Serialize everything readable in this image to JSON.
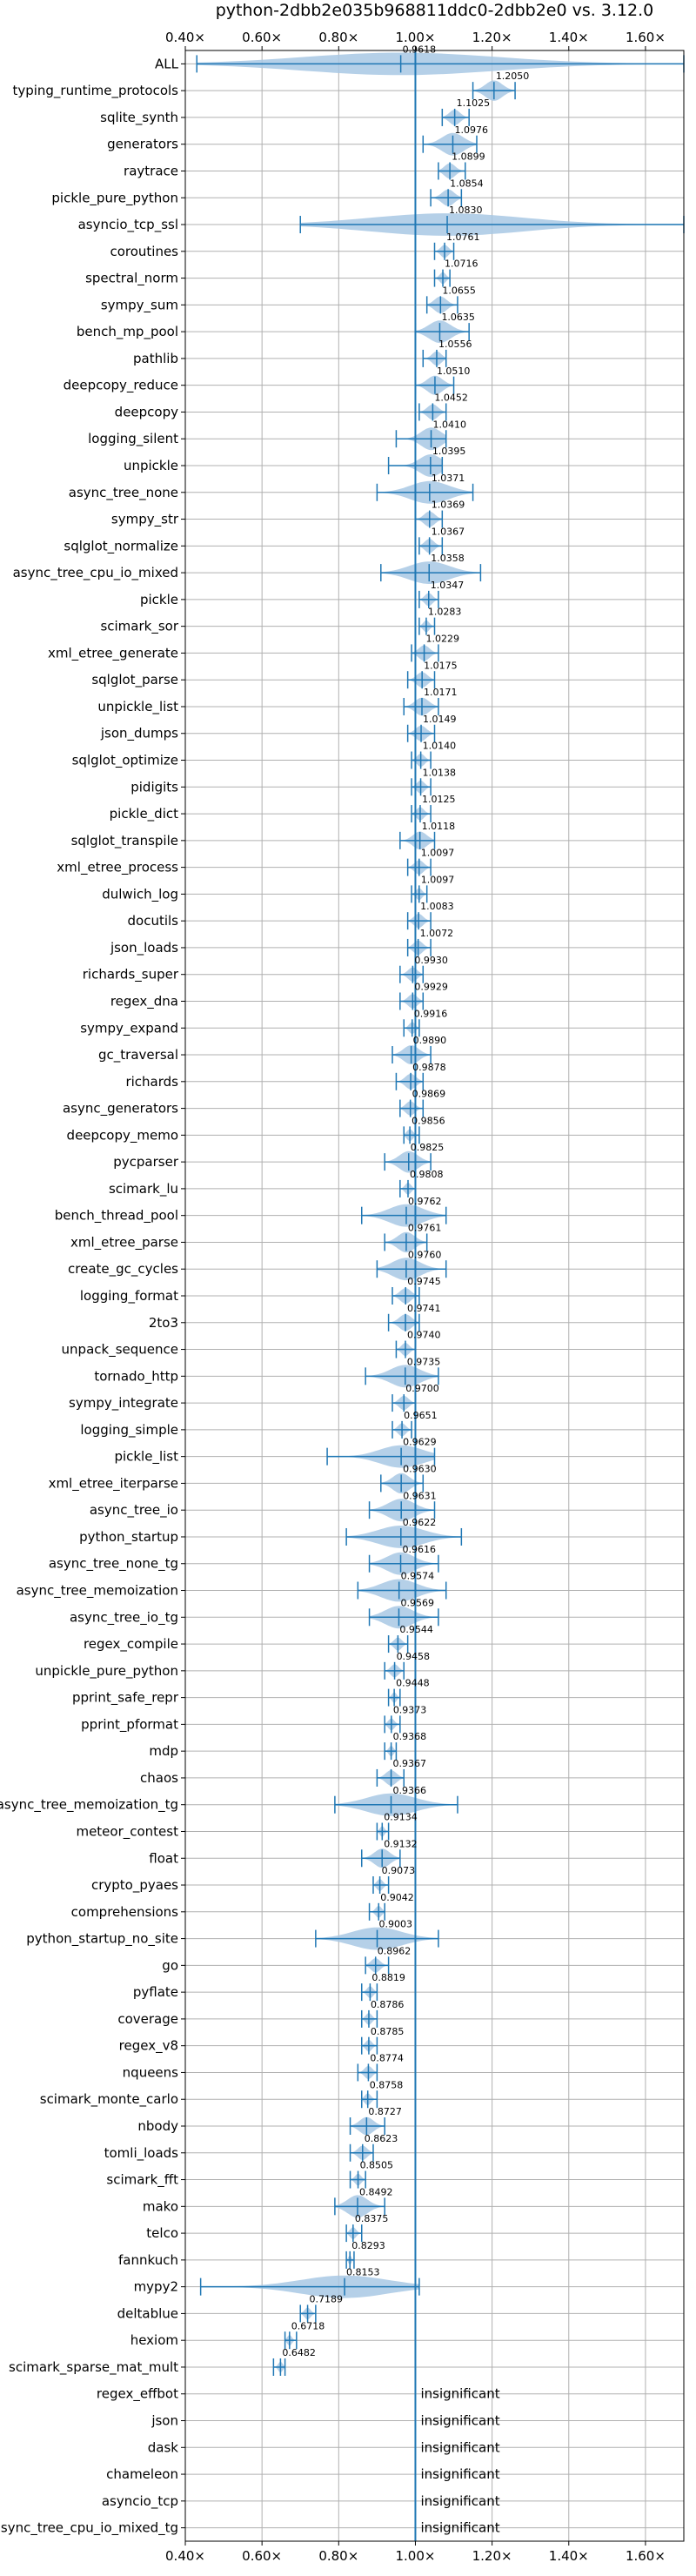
{
  "chart_data": {
    "type": "violin",
    "title": "python-2dbb2e035b968811ddc0-2dbb2e0 vs. 3.12.0",
    "xlim": [
      0.4,
      1.7
    ],
    "xticks": [
      0.4,
      0.6,
      0.8,
      1.0,
      1.2,
      1.4,
      1.6
    ],
    "xtick_labels": [
      "0.40×",
      "0.60×",
      "0.80×",
      "1.00×",
      "1.20×",
      "1.40×",
      "1.60×"
    ],
    "reference_line": 1.0,
    "grid": true,
    "colors": {
      "violin": "#a8c8e4",
      "line": "#1f77b4",
      "grid": "#b0b0b0"
    },
    "benchmarks": [
      {
        "name": "ALL",
        "value": 0.9618,
        "value_label": "0.9618",
        "min": 0.43,
        "max": 1.7
      },
      {
        "name": "typing_runtime_protocols",
        "value": 1.205,
        "value_label": "1.2050",
        "min": 1.15,
        "max": 1.26
      },
      {
        "name": "sqlite_synth",
        "value": 1.1025,
        "value_label": "1.1025",
        "min": 1.07,
        "max": 1.14
      },
      {
        "name": "generators",
        "value": 1.0976,
        "value_label": "1.0976",
        "min": 1.02,
        "max": 1.16
      },
      {
        "name": "raytrace",
        "value": 1.0899,
        "value_label": "1.0899",
        "min": 1.06,
        "max": 1.13
      },
      {
        "name": "pickle_pure_python",
        "value": 1.0854,
        "value_label": "1.0854",
        "min": 1.04,
        "max": 1.12
      },
      {
        "name": "asyncio_tcp_ssl",
        "value": 1.083,
        "value_label": "1.0830",
        "min": 0.7,
        "max": 1.7
      },
      {
        "name": "coroutines",
        "value": 1.0761,
        "value_label": "1.0761",
        "min": 1.05,
        "max": 1.1
      },
      {
        "name": "spectral_norm",
        "value": 1.0716,
        "value_label": "1.0716",
        "min": 1.05,
        "max": 1.09
      },
      {
        "name": "sympy_sum",
        "value": 1.0655,
        "value_label": "1.0655",
        "min": 1.03,
        "max": 1.11
      },
      {
        "name": "bench_mp_pool",
        "value": 1.0635,
        "value_label": "1.0635",
        "min": 1.0,
        "max": 1.14
      },
      {
        "name": "pathlib",
        "value": 1.0556,
        "value_label": "1.0556",
        "min": 1.02,
        "max": 1.08
      },
      {
        "name": "deepcopy_reduce",
        "value": 1.051,
        "value_label": "1.0510",
        "min": 1.0,
        "max": 1.1
      },
      {
        "name": "deepcopy",
        "value": 1.0452,
        "value_label": "1.0452",
        "min": 1.01,
        "max": 1.08
      },
      {
        "name": "logging_silent",
        "value": 1.041,
        "value_label": "1.0410",
        "min": 0.95,
        "max": 1.08
      },
      {
        "name": "unpickle",
        "value": 1.0395,
        "value_label": "1.0395",
        "min": 0.93,
        "max": 1.07
      },
      {
        "name": "async_tree_none",
        "value": 1.0371,
        "value_label": "1.0371",
        "min": 0.9,
        "max": 1.15
      },
      {
        "name": "sympy_str",
        "value": 1.0369,
        "value_label": "1.0369",
        "min": 1.0,
        "max": 1.07
      },
      {
        "name": "sqlglot_normalize",
        "value": 1.0367,
        "value_label": "1.0367",
        "min": 1.01,
        "max": 1.07
      },
      {
        "name": "async_tree_cpu_io_mixed",
        "value": 1.0358,
        "value_label": "1.0358",
        "min": 0.91,
        "max": 1.17
      },
      {
        "name": "pickle",
        "value": 1.0347,
        "value_label": "1.0347",
        "min": 1.01,
        "max": 1.06
      },
      {
        "name": "scimark_sor",
        "value": 1.0283,
        "value_label": "1.0283",
        "min": 1.01,
        "max": 1.05
      },
      {
        "name": "xml_etree_generate",
        "value": 1.0229,
        "value_label": "1.0229",
        "min": 0.99,
        "max": 1.06
      },
      {
        "name": "sqlglot_parse",
        "value": 1.0175,
        "value_label": "1.0175",
        "min": 0.98,
        "max": 1.05
      },
      {
        "name": "unpickle_list",
        "value": 1.0171,
        "value_label": "1.0171",
        "min": 0.97,
        "max": 1.06
      },
      {
        "name": "json_dumps",
        "value": 1.0149,
        "value_label": "1.0149",
        "min": 0.98,
        "max": 1.05
      },
      {
        "name": "sqlglot_optimize",
        "value": 1.014,
        "value_label": "1.0140",
        "min": 0.99,
        "max": 1.04
      },
      {
        "name": "pidigits",
        "value": 1.0138,
        "value_label": "1.0138",
        "min": 0.99,
        "max": 1.04
      },
      {
        "name": "pickle_dict",
        "value": 1.0125,
        "value_label": "1.0125",
        "min": 0.99,
        "max": 1.04
      },
      {
        "name": "sqlglot_transpile",
        "value": 1.0118,
        "value_label": "1.0118",
        "min": 0.96,
        "max": 1.05
      },
      {
        "name": "xml_etree_process",
        "value": 1.0097,
        "value_label": "1.0097",
        "min": 0.98,
        "max": 1.04
      },
      {
        "name": "dulwich_log",
        "value": 1.0097,
        "value_label": "1.0097",
        "min": 0.99,
        "max": 1.03
      },
      {
        "name": "docutils",
        "value": 1.0083,
        "value_label": "1.0083",
        "min": 0.98,
        "max": 1.04
      },
      {
        "name": "json_loads",
        "value": 1.0072,
        "value_label": "1.0072",
        "min": 0.98,
        "max": 1.04
      },
      {
        "name": "richards_super",
        "value": 0.993,
        "value_label": "0.9930",
        "min": 0.96,
        "max": 1.02
      },
      {
        "name": "regex_dna",
        "value": 0.9929,
        "value_label": "0.9929",
        "min": 0.96,
        "max": 1.02
      },
      {
        "name": "sympy_expand",
        "value": 0.9916,
        "value_label": "0.9916",
        "min": 0.97,
        "max": 1.01
      },
      {
        "name": "gc_traversal",
        "value": 0.989,
        "value_label": "0.9890",
        "min": 0.94,
        "max": 1.04
      },
      {
        "name": "richards",
        "value": 0.9878,
        "value_label": "0.9878",
        "min": 0.95,
        "max": 1.02
      },
      {
        "name": "async_generators",
        "value": 0.9869,
        "value_label": "0.9869",
        "min": 0.96,
        "max": 1.02
      },
      {
        "name": "deepcopy_memo",
        "value": 0.9856,
        "value_label": "0.9856",
        "min": 0.97,
        "max": 1.01
      },
      {
        "name": "pycparser",
        "value": 0.9825,
        "value_label": "0.9825",
        "min": 0.92,
        "max": 1.04
      },
      {
        "name": "scimark_lu",
        "value": 0.9808,
        "value_label": "0.9808",
        "min": 0.96,
        "max": 1.0
      },
      {
        "name": "bench_thread_pool",
        "value": 0.9762,
        "value_label": "0.9762",
        "min": 0.86,
        "max": 1.08
      },
      {
        "name": "xml_etree_parse",
        "value": 0.9761,
        "value_label": "0.9761",
        "min": 0.92,
        "max": 1.03
      },
      {
        "name": "create_gc_cycles",
        "value": 0.976,
        "value_label": "0.9760",
        "min": 0.9,
        "max": 1.08
      },
      {
        "name": "logging_format",
        "value": 0.9745,
        "value_label": "0.9745",
        "min": 0.94,
        "max": 1.01
      },
      {
        "name": "2to3",
        "value": 0.9741,
        "value_label": "0.9741",
        "min": 0.93,
        "max": 1.01
      },
      {
        "name": "unpack_sequence",
        "value": 0.974,
        "value_label": "0.9740",
        "min": 0.95,
        "max": 1.0
      },
      {
        "name": "tornado_http",
        "value": 0.9735,
        "value_label": "0.9735",
        "min": 0.87,
        "max": 1.06
      },
      {
        "name": "sympy_integrate",
        "value": 0.97,
        "value_label": "0.9700",
        "min": 0.94,
        "max": 1.0
      },
      {
        "name": "logging_simple",
        "value": 0.9651,
        "value_label": "0.9651",
        "min": 0.94,
        "max": 0.99
      },
      {
        "name": "pickle_list",
        "value": 0.9629,
        "value_label": "0.9629",
        "min": 0.77,
        "max": 1.05
      },
      {
        "name": "xml_etree_iterparse",
        "value": 0.963,
        "value_label": "0.9630",
        "min": 0.91,
        "max": 1.02
      },
      {
        "name": "async_tree_io",
        "value": 0.9631,
        "value_label": "0.9631",
        "min": 0.88,
        "max": 1.05
      },
      {
        "name": "python_startup",
        "value": 0.9622,
        "value_label": "0.9622",
        "min": 0.82,
        "max": 1.12
      },
      {
        "name": "async_tree_none_tg",
        "value": 0.9616,
        "value_label": "0.9616",
        "min": 0.88,
        "max": 1.06
      },
      {
        "name": "async_tree_memoization",
        "value": 0.9574,
        "value_label": "0.9574",
        "min": 0.85,
        "max": 1.08
      },
      {
        "name": "async_tree_io_tg",
        "value": 0.9569,
        "value_label": "0.9569",
        "min": 0.88,
        "max": 1.06
      },
      {
        "name": "regex_compile",
        "value": 0.9544,
        "value_label": "0.9544",
        "min": 0.93,
        "max": 0.98
      },
      {
        "name": "unpickle_pure_python",
        "value": 0.9458,
        "value_label": "0.9458",
        "min": 0.92,
        "max": 0.97
      },
      {
        "name": "pprint_safe_repr",
        "value": 0.9448,
        "value_label": "0.9448",
        "min": 0.93,
        "max": 0.96
      },
      {
        "name": "pprint_pformat",
        "value": 0.9373,
        "value_label": "0.9373",
        "min": 0.92,
        "max": 0.96
      },
      {
        "name": "mdp",
        "value": 0.9368,
        "value_label": "0.9368",
        "min": 0.92,
        "max": 0.95
      },
      {
        "name": "chaos",
        "value": 0.9367,
        "value_label": "0.9367",
        "min": 0.9,
        "max": 0.97
      },
      {
        "name": "async_tree_memoization_tg",
        "value": 0.9366,
        "value_label": "0.9366",
        "min": 0.79,
        "max": 1.11
      },
      {
        "name": "meteor_contest",
        "value": 0.9134,
        "value_label": "0.9134",
        "min": 0.9,
        "max": 0.93
      },
      {
        "name": "float",
        "value": 0.9132,
        "value_label": "0.9132",
        "min": 0.86,
        "max": 0.96
      },
      {
        "name": "crypto_pyaes",
        "value": 0.9073,
        "value_label": "0.9073",
        "min": 0.89,
        "max": 0.93
      },
      {
        "name": "comprehensions",
        "value": 0.9042,
        "value_label": "0.9042",
        "min": 0.88,
        "max": 0.92
      },
      {
        "name": "python_startup_no_site",
        "value": 0.9003,
        "value_label": "0.9003",
        "min": 0.74,
        "max": 1.06
      },
      {
        "name": "go",
        "value": 0.8962,
        "value_label": "0.8962",
        "min": 0.87,
        "max": 0.93
      },
      {
        "name": "pyflate",
        "value": 0.8819,
        "value_label": "0.8819",
        "min": 0.86,
        "max": 0.9
      },
      {
        "name": "coverage",
        "value": 0.8786,
        "value_label": "0.8786",
        "min": 0.86,
        "max": 0.9
      },
      {
        "name": "regex_v8",
        "value": 0.8785,
        "value_label": "0.8785",
        "min": 0.86,
        "max": 0.9
      },
      {
        "name": "nqueens",
        "value": 0.8774,
        "value_label": "0.8774",
        "min": 0.85,
        "max": 0.9
      },
      {
        "name": "scimark_monte_carlo",
        "value": 0.8758,
        "value_label": "0.8758",
        "min": 0.86,
        "max": 0.9
      },
      {
        "name": "nbody",
        "value": 0.8727,
        "value_label": "0.8727",
        "min": 0.83,
        "max": 0.92
      },
      {
        "name": "tomli_loads",
        "value": 0.8623,
        "value_label": "0.8623",
        "min": 0.83,
        "max": 0.89
      },
      {
        "name": "scimark_fft",
        "value": 0.8505,
        "value_label": "0.8505",
        "min": 0.83,
        "max": 0.87
      },
      {
        "name": "mako",
        "value": 0.8492,
        "value_label": "0.8492",
        "min": 0.79,
        "max": 0.92
      },
      {
        "name": "telco",
        "value": 0.8375,
        "value_label": "0.8375",
        "min": 0.82,
        "max": 0.86
      },
      {
        "name": "fannkuch",
        "value": 0.8293,
        "value_label": "0.8293",
        "min": 0.82,
        "max": 0.84
      },
      {
        "name": "mypy2",
        "value": 0.8153,
        "value_label": "0.8153",
        "min": 0.44,
        "max": 1.01
      },
      {
        "name": "deltablue",
        "value": 0.7189,
        "value_label": "0.7189",
        "min": 0.7,
        "max": 0.74
      },
      {
        "name": "hexiom",
        "value": 0.6718,
        "value_label": "0.6718",
        "min": 0.66,
        "max": 0.69
      },
      {
        "name": "scimark_sparse_mat_mult",
        "value": 0.6482,
        "value_label": "0.6482",
        "min": 0.63,
        "max": 0.66
      },
      {
        "name": "regex_effbot",
        "value": null,
        "value_label": "insignificant"
      },
      {
        "name": "json",
        "value": null,
        "value_label": "insignificant"
      },
      {
        "name": "dask",
        "value": null,
        "value_label": "insignificant"
      },
      {
        "name": "chameleon",
        "value": null,
        "value_label": "insignificant"
      },
      {
        "name": "asyncio_tcp",
        "value": null,
        "value_label": "insignificant"
      },
      {
        "name": "async_tree_cpu_io_mixed_tg",
        "value": null,
        "value_label": "insignificant"
      }
    ]
  }
}
